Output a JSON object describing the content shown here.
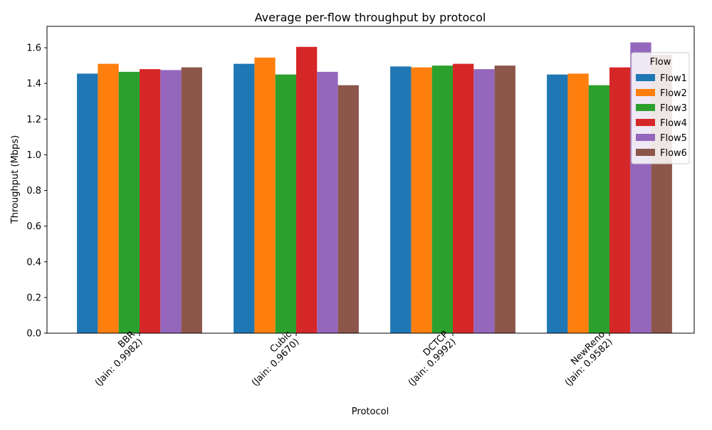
{
  "chart_data": {
    "type": "bar",
    "title": "Average per-flow throughput by protocol",
    "xlabel": "Protocol",
    "ylabel": "Throughput (Mbps)",
    "categories": [
      [
        "BBR",
        "(Jain: 0.9982)"
      ],
      [
        "Cubic",
        "(Jain: 0.9670)"
      ],
      [
        "DCTCP",
        "(Jain: 0.9992)"
      ],
      [
        "NewReno",
        "(Jain: 0.9582)"
      ]
    ],
    "ylim": [
      0,
      1.72
    ],
    "yticks": [
      "0.0",
      "0.2",
      "0.4",
      "0.6",
      "0.8",
      "1.0",
      "1.2",
      "1.4",
      "1.6"
    ],
    "legend_title": "Flow",
    "legend_position": "top-right",
    "grid": false,
    "series": [
      {
        "name": "Flow1",
        "color": "#1f77b4",
        "values": [
          1.455,
          1.51,
          1.495,
          1.45
        ]
      },
      {
        "name": "Flow2",
        "color": "#ff7f0e",
        "values": [
          1.51,
          1.545,
          1.49,
          1.455
        ]
      },
      {
        "name": "Flow3",
        "color": "#2ca02c",
        "values": [
          1.465,
          1.45,
          1.5,
          1.39
        ]
      },
      {
        "name": "Flow4",
        "color": "#d62728",
        "values": [
          1.48,
          1.605,
          1.51,
          1.49
        ]
      },
      {
        "name": "Flow5",
        "color": "#9467bd",
        "values": [
          1.475,
          1.465,
          1.48,
          1.63
        ]
      },
      {
        "name": "Flow6",
        "color": "#8c564b",
        "values": [
          1.49,
          1.39,
          1.5,
          1.56
        ]
      }
    ]
  }
}
